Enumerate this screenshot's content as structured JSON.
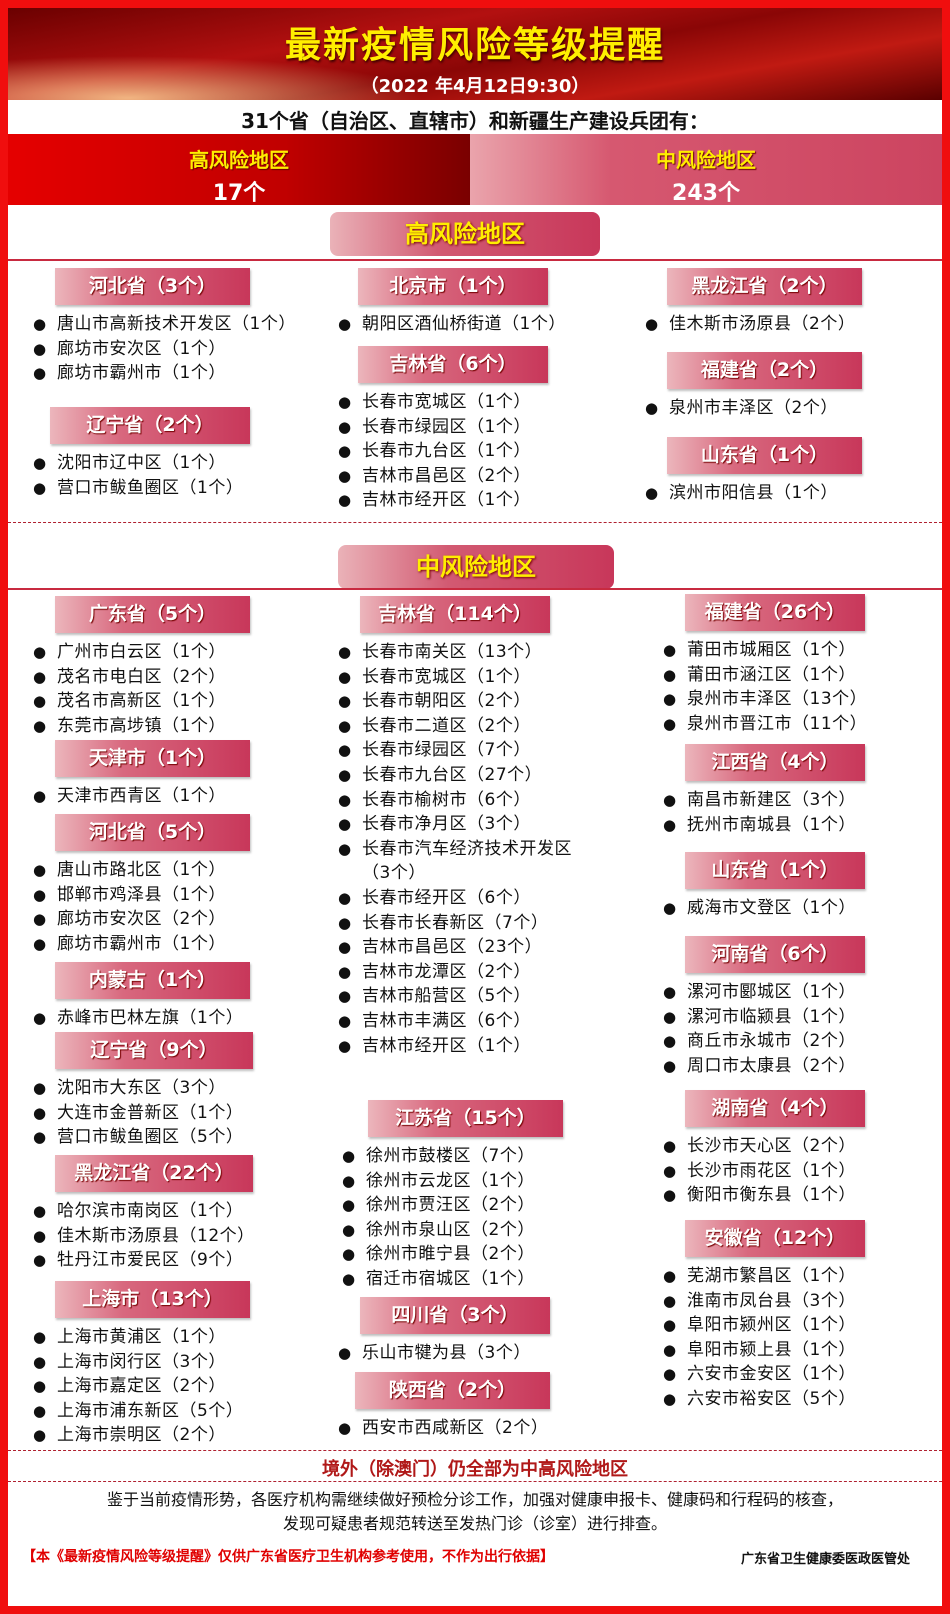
{
  "header": {
    "title": "最新疫情风险等级提醒",
    "date": "（2022 年4月12日9:30）"
  },
  "intro": "31个省（自治区、直辖市）和新疆生产建设兵团有：",
  "stats": {
    "high_label": "高风险地区",
    "high_count": "17个",
    "med_label": "中风险地区",
    "med_count": "243个"
  },
  "colors": {
    "frame": "#f00e0e",
    "title": "#ffee00",
    "high": "#c00000",
    "medium": "#cc4460"
  },
  "high_section": {
    "label": "高风险地区",
    "groups": [
      {
        "title": "河北省（3个）",
        "items": [
          "唐山市高新技术开发区（1个）",
          "廊坊市安次区（1个）",
          "廊坊市霸州市（1个）"
        ]
      },
      {
        "title": "辽宁省（2个）",
        "items": [
          "沈阳市辽中区（1个）",
          "营口市鲅鱼圈区（1个）"
        ]
      },
      {
        "title": "北京市（1个）",
        "items": [
          "朝阳区酒仙桥街道（1个）"
        ]
      },
      {
        "title": "吉林省（6个）",
        "items": [
          "长春市宽城区（1个）",
          "长春市绿园区（1个）",
          "长春市九台区（1个）",
          "吉林市昌邑区（2个）",
          "吉林市经开区（1个）"
        ]
      },
      {
        "title": "黑龙江省（2个）",
        "items": [
          "佳木斯市汤原县（2个）"
        ]
      },
      {
        "title": "福建省（2个）",
        "items": [
          "泉州市丰泽区（2个）"
        ]
      },
      {
        "title": "山东省（1个）",
        "items": [
          "滨州市阳信县（1个）"
        ]
      }
    ]
  },
  "medium_section": {
    "label": "中风险地区",
    "groups": [
      {
        "title": "广东省（5个）",
        "items": [
          "广州市白云区（1个）",
          "茂名市电白区（2个）",
          "茂名市高新区（1个）",
          "东莞市高埗镇（1个）"
        ]
      },
      {
        "title": "天津市（1个）",
        "items": [
          "天津市西青区（1个）"
        ]
      },
      {
        "title": "河北省（5个）",
        "items": [
          "唐山市路北区（1个）",
          "邯郸市鸡泽县（1个）",
          "廊坊市安次区（2个）",
          "廊坊市霸州市（1个）"
        ]
      },
      {
        "title": "内蒙古（1个）",
        "items": [
          "赤峰市巴林左旗（1个）"
        ]
      },
      {
        "title": "辽宁省（9个）",
        "items": [
          "沈阳市大东区（3个）",
          "大连市金普新区（1个）",
          "营口市鲅鱼圈区（5个）"
        ]
      },
      {
        "title": "黑龙江省（22个）",
        "items": [
          "哈尔滨市南岗区（1个）",
          "佳木斯市汤原县（12个）",
          "牡丹江市爱民区（9个）"
        ]
      },
      {
        "title": "上海市（13个）",
        "items": [
          "上海市黄浦区（1个）",
          "上海市闵行区（3个）",
          "上海市嘉定区（2个）",
          "上海市浦东新区（5个）",
          "上海市崇明区（2个）"
        ]
      },
      {
        "title": "吉林省（114个）",
        "items": [
          "长春市南关区（13个）",
          "长春市宽城区（1个）",
          "长春市朝阳区（2个）",
          "长春市二道区（2个）",
          "长春市绿园区（7个）",
          "长春市九台区（27个）",
          "长春市榆树市（6个）",
          "长春市净月区（3个）",
          "长春市汽车经济技术开发区（3个）",
          "长春市经开区（6个）",
          "长春市长春新区（7个）",
          "吉林市昌邑区（23个）",
          "吉林市龙潭区（2个）",
          "吉林市船营区（5个）",
          "吉林市丰满区（6个）",
          "吉林市经开区（1个）"
        ]
      },
      {
        "title": "江苏省（15个）",
        "items": [
          "徐州市鼓楼区（7个）",
          "徐州市云龙区（1个）",
          "徐州市贾汪区（2个）",
          "徐州市泉山区（2个）",
          "徐州市睢宁县（2个）",
          "宿迁市宿城区（1个）"
        ]
      },
      {
        "title": "四川省（3个）",
        "items": [
          "乐山市犍为县（3个）"
        ]
      },
      {
        "title": "陕西省（2个）",
        "items": [
          "西安市西咸新区（2个）"
        ]
      },
      {
        "title": "福建省（26个）",
        "items": [
          "莆田市城厢区（1个）",
          "莆田市涵江区（1个）",
          "泉州市丰泽区（13个）",
          "泉州市晋江市（11个）"
        ]
      },
      {
        "title": "江西省（4个）",
        "items": [
          "南昌市新建区（3个）",
          "抚州市南城县（1个）"
        ]
      },
      {
        "title": "山东省（1个）",
        "items": [
          "威海市文登区（1个）"
        ]
      },
      {
        "title": "河南省（6个）",
        "items": [
          "漯河市郾城区（1个）",
          "漯河市临颍县（1个）",
          "商丘市永城市（2个）",
          "周口市太康县（2个）"
        ]
      },
      {
        "title": "湖南省（4个）",
        "items": [
          "长沙市天心区（2个）",
          "长沙市雨花区（1个）",
          "衡阳市衡东县（1个）"
        ]
      },
      {
        "title": "安徽省（12个）",
        "items": [
          "芜湖市繁昌区（1个）",
          "淮南市凤台县（3个）",
          "阜阳市颍州区（1个）",
          "阜阳市颍上县（1个）",
          "六安市金安区（1个）",
          "六安市裕安区（5个）"
        ]
      }
    ]
  },
  "footer": {
    "notice": "境外（除澳门）仍全部为中高风险地区",
    "body_line1": "鉴于当前疫情形势，各医疗机构需继续做好预检分诊工作，加强对健康申报卡、健康码和行程码的核查，",
    "body_line2": "发现可疑患者规范转送至发热门诊（诊室）进行排查。",
    "disclaimer": "【本《最新疫情风险等级提醒》仅供广东省医疗卫生机构参考使用，不作为出行依据】",
    "department": "广东省卫生健康委医政医管处"
  }
}
